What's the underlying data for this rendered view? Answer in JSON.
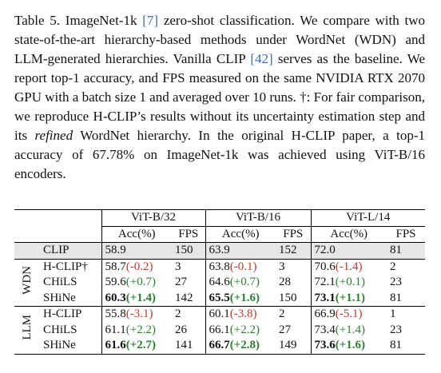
{
  "caption": {
    "parts": [
      "Table 5. ImageNet-1k ",
      "[7]",
      " zero-shot classification. We compare with two state-of-the-art hierarchy-based methods under WordNet (WDN) and LLM-generated hierarchies. Vanilla CLIP ",
      "[42]",
      " serves as the baseline. We report top-1 accuracy, and FPS measured on the same NVIDIA RTX 2070 GPU with a batch size 1 and averaged over 10 runs. †: For fair comparison, we reproduce H-CLIP’s results without its uncertainty estimation step and its ",
      "refined",
      " WordNet hierarchy. In the original H-CLIP paper, a top-1 accuracy of 67.78% on ImageNet-1k was achieved using ViT-B/16 encoders."
    ]
  },
  "table": {
    "groups": [
      "ViT-B/32",
      "ViT-B/16",
      "ViT-L/14"
    ],
    "subheaders": [
      "Acc(%)",
      "FPS"
    ],
    "baseline": {
      "method": "CLIP",
      "cells": [
        {
          "acc": "58.9",
          "fps": 150
        },
        {
          "acc": "63.9",
          "fps": 152
        },
        {
          "acc": "72.0",
          "fps": 81
        }
      ]
    },
    "sections": [
      {
        "label": "WDN",
        "rows": [
          {
            "method": "H-CLIP†",
            "cells": [
              {
                "acc": "58.7",
                "delta": "(-0.2)",
                "fps": 3
              },
              {
                "acc": "63.8",
                "delta": "(-0.1)",
                "fps": 3
              },
              {
                "acc": "70.6",
                "delta": "(-1.4)",
                "fps": 2
              }
            ]
          },
          {
            "method": "CHiLS",
            "cells": [
              {
                "acc": "59.6",
                "delta": "(+0.7)",
                "fps": 27
              },
              {
                "acc": "64.6",
                "delta": "(+0.7)",
                "fps": 28
              },
              {
                "acc": "72.1",
                "delta": "(+0.1)",
                "fps": 23
              }
            ]
          },
          {
            "method": "SHiNe",
            "bold": true,
            "cells": [
              {
                "acc": "60.3",
                "delta": "(+1.4)",
                "fps": 142
              },
              {
                "acc": "65.5",
                "delta": "(+1.6)",
                "fps": 150
              },
              {
                "acc": "73.1",
                "delta": "(+1.1)",
                "fps": 81
              }
            ]
          }
        ]
      },
      {
        "label": "LLM",
        "rows": [
          {
            "method": "H-CLIP",
            "cells": [
              {
                "acc": "55.8",
                "delta": "(-3.1)",
                "fps": 2
              },
              {
                "acc": "60.1",
                "delta": "(-3.8)",
                "fps": 2
              },
              {
                "acc": "66.9",
                "delta": "(-5.1)",
                "fps": 1
              }
            ]
          },
          {
            "method": "CHiLS",
            "cells": [
              {
                "acc": "61.1",
                "delta": "(+2.2)",
                "fps": 26
              },
              {
                "acc": "66.1",
                "delta": "(+2.2)",
                "fps": 27
              },
              {
                "acc": "73.4",
                "delta": "(+1.4)",
                "fps": 23
              }
            ]
          },
          {
            "method": "SHiNe",
            "bold": true,
            "cells": [
              {
                "acc": "61.6",
                "delta": "(+2.7)",
                "fps": 141
              },
              {
                "acc": "66.7",
                "delta": "(+2.8)",
                "fps": 149
              },
              {
                "acc": "73.6",
                "delta": "(+1.6)",
                "fps": 81
              }
            ]
          }
        ]
      }
    ]
  }
}
